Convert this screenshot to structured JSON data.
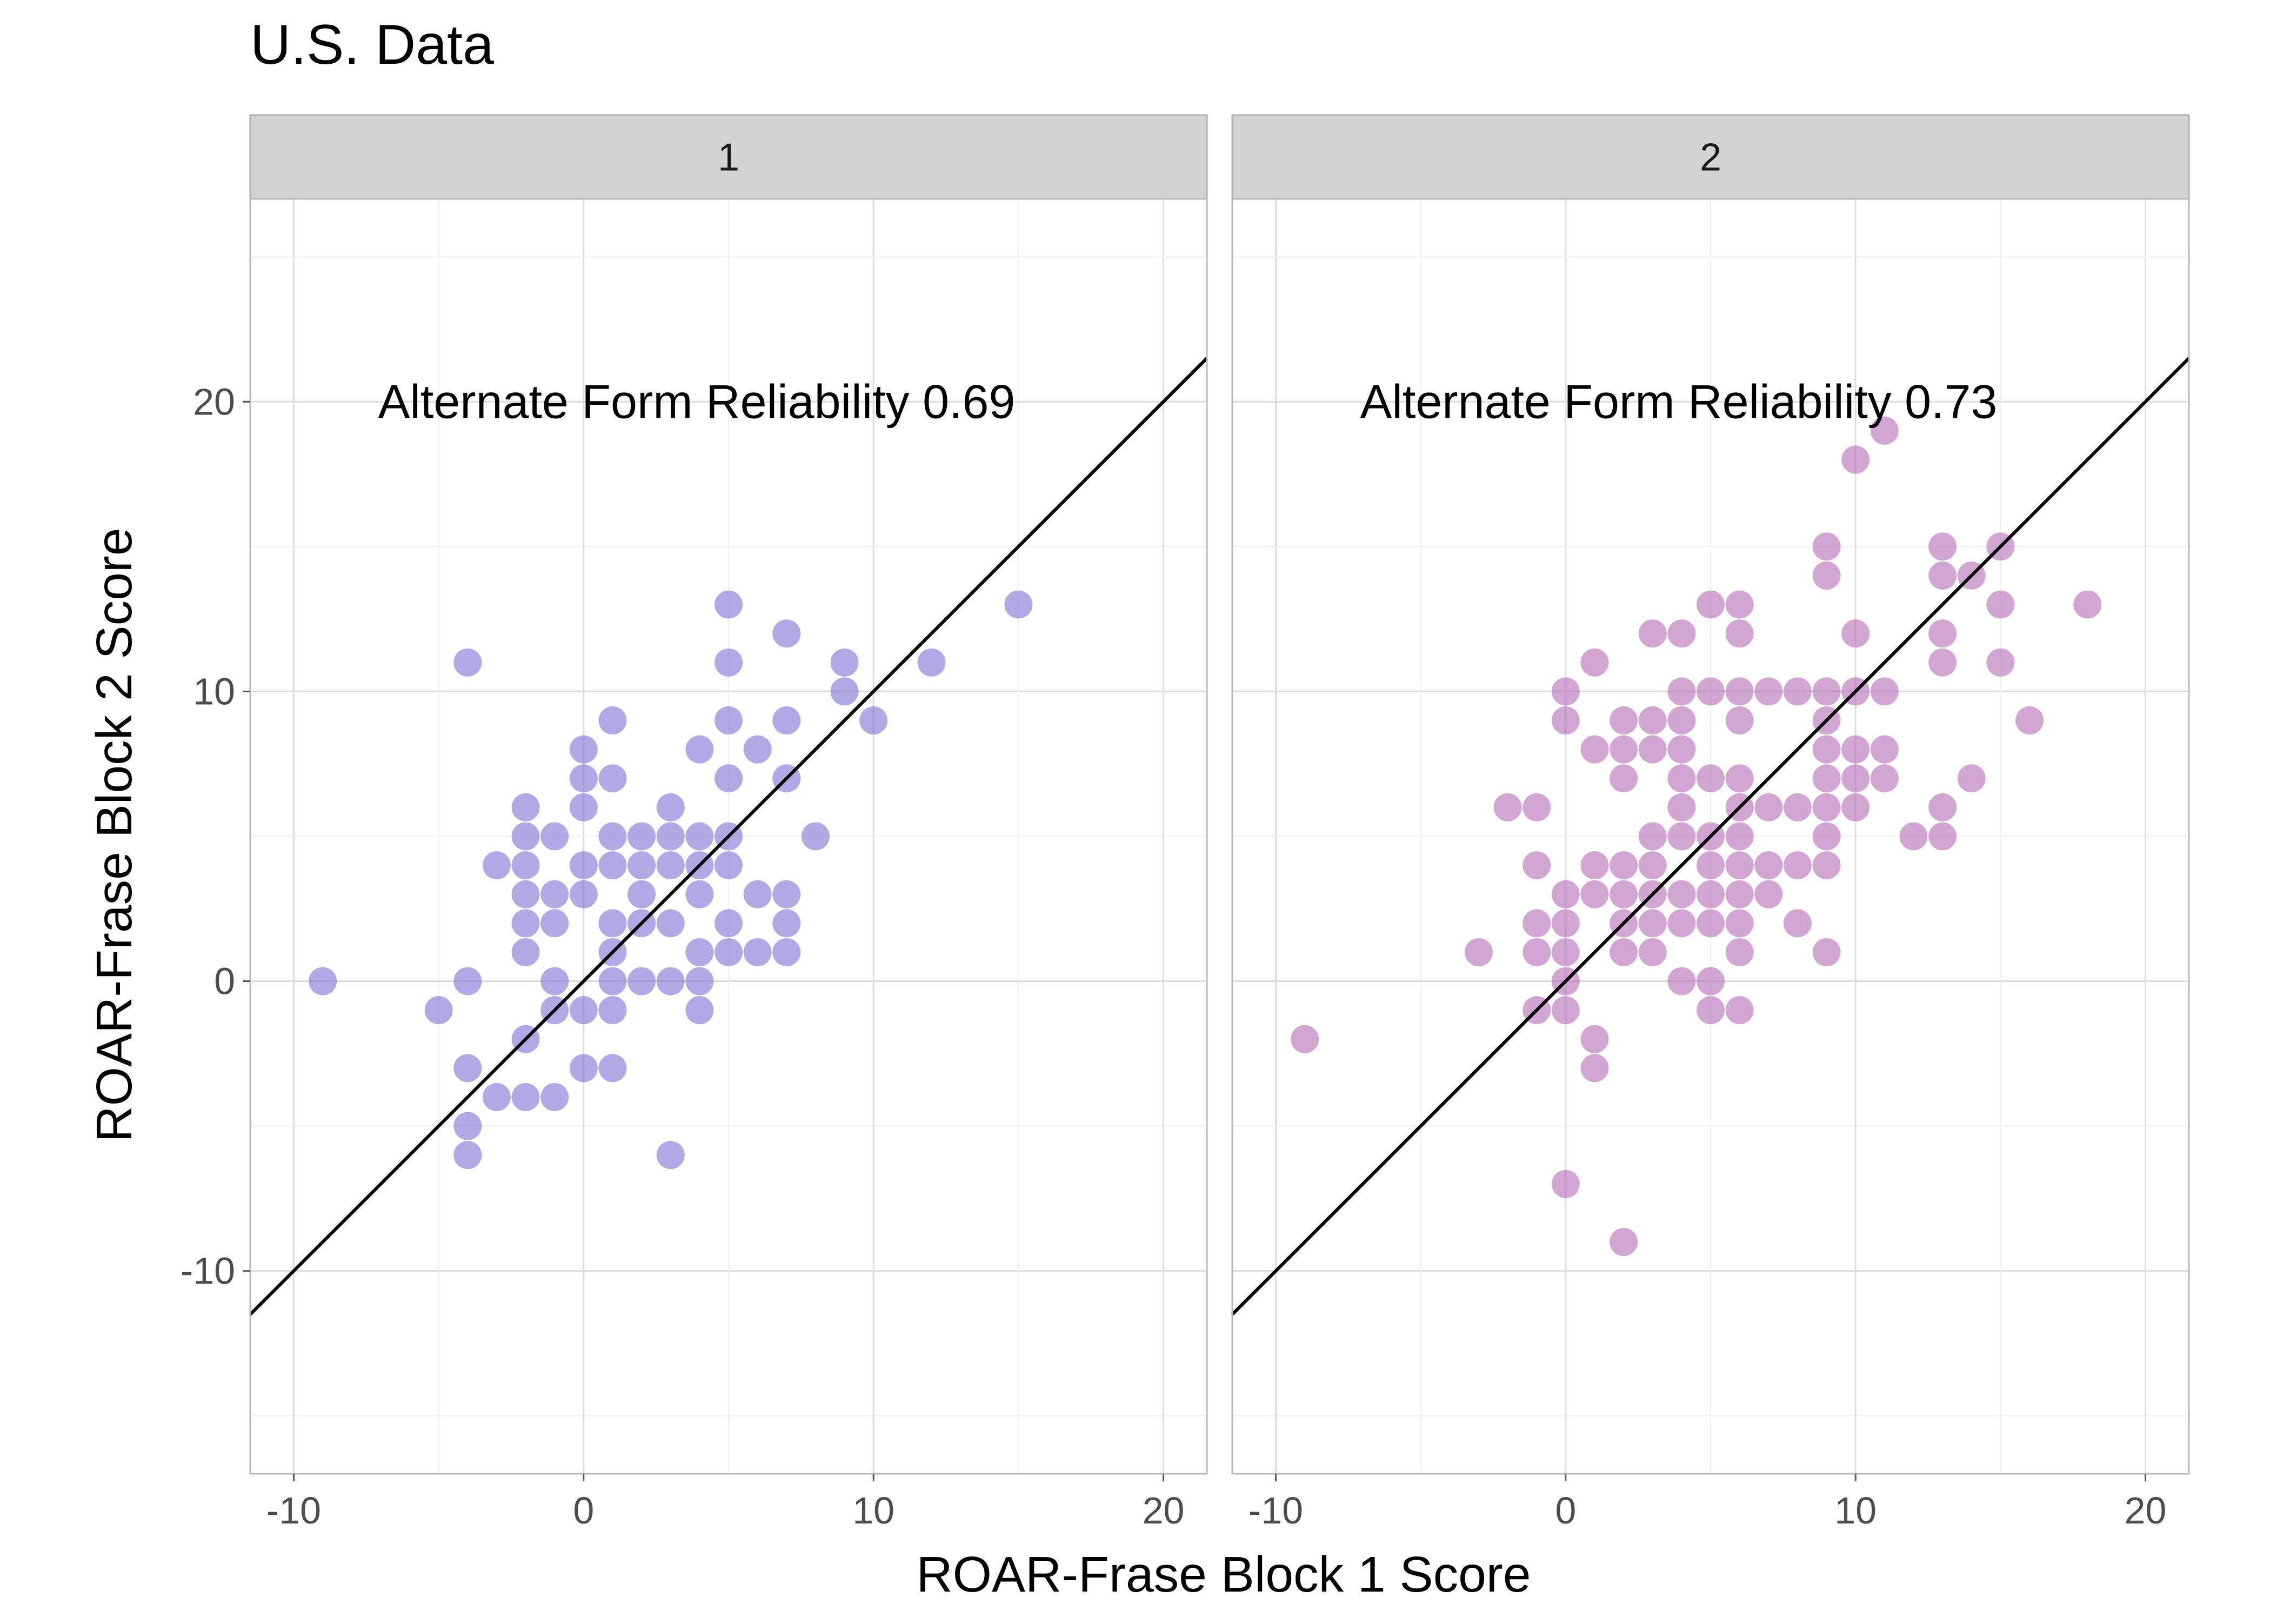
{
  "chart_data": {
    "type": "scatter",
    "title": "U.S. Data",
    "xlabel": "ROAR-Frase Block 1 Score",
    "ylabel": "ROAR-Frase Block 2 Score",
    "xlim": [
      -11.5,
      21.5
    ],
    "ylim": [
      -17,
      27
    ],
    "x_ticks": [
      -10,
      0,
      10,
      20
    ],
    "y_ticks": [
      -10,
      0,
      10,
      20
    ],
    "x_tick_labels": [
      "-10",
      "0",
      "10",
      "20"
    ],
    "y_tick_labels": [
      "-10",
      "0",
      "10",
      "20"
    ],
    "grid": true,
    "legend": "none",
    "reference_line": {
      "slope": 1,
      "intercept": 0
    },
    "panels": [
      {
        "strip_label": "1",
        "annotation": "Alternate Form Reliability 0.69",
        "color": "#7b6fd6",
        "points": [
          [
            -9,
            0
          ],
          [
            -5,
            -1
          ],
          [
            -4,
            11
          ],
          [
            -4,
            0
          ],
          [
            -4,
            -3
          ],
          [
            -4,
            -5
          ],
          [
            -4,
            -6
          ],
          [
            -3,
            4
          ],
          [
            -3,
            -4
          ],
          [
            -2,
            6
          ],
          [
            -2,
            5
          ],
          [
            -2,
            4
          ],
          [
            -2,
            3
          ],
          [
            -2,
            2
          ],
          [
            -2,
            1
          ],
          [
            -2,
            -2
          ],
          [
            -2,
            -4
          ],
          [
            -1,
            5
          ],
          [
            -1,
            3
          ],
          [
            -1,
            2
          ],
          [
            -1,
            0
          ],
          [
            -1,
            -1
          ],
          [
            -1,
            -4
          ],
          [
            0,
            8
          ],
          [
            0,
            7
          ],
          [
            0,
            6
          ],
          [
            0,
            4
          ],
          [
            0,
            3
          ],
          [
            0,
            -1
          ],
          [
            0,
            -3
          ],
          [
            1,
            9
          ],
          [
            1,
            7
          ],
          [
            1,
            5
          ],
          [
            1,
            4
          ],
          [
            1,
            2
          ],
          [
            1,
            1
          ],
          [
            1,
            0
          ],
          [
            1,
            -1
          ],
          [
            1,
            -3
          ],
          [
            2,
            5
          ],
          [
            2,
            4
          ],
          [
            2,
            3
          ],
          [
            2,
            2
          ],
          [
            2,
            0
          ],
          [
            3,
            6
          ],
          [
            3,
            5
          ],
          [
            3,
            4
          ],
          [
            3,
            2
          ],
          [
            3,
            0
          ],
          [
            3,
            -6
          ],
          [
            4,
            8
          ],
          [
            4,
            5
          ],
          [
            4,
            4
          ],
          [
            4,
            3
          ],
          [
            4,
            1
          ],
          [
            4,
            0
          ],
          [
            4,
            -1
          ],
          [
            5,
            13
          ],
          [
            5,
            11
          ],
          [
            5,
            9
          ],
          [
            5,
            7
          ],
          [
            5,
            5
          ],
          [
            5,
            4
          ],
          [
            5,
            2
          ],
          [
            5,
            1
          ],
          [
            6,
            8
          ],
          [
            6,
            3
          ],
          [
            6,
            1
          ],
          [
            7,
            12
          ],
          [
            7,
            9
          ],
          [
            7,
            7
          ],
          [
            7,
            3
          ],
          [
            7,
            2
          ],
          [
            7,
            1
          ],
          [
            8,
            5
          ],
          [
            9,
            11
          ],
          [
            9,
            10
          ],
          [
            10,
            9
          ],
          [
            12,
            11
          ],
          [
            15,
            13
          ]
        ]
      },
      {
        "strip_label": "2",
        "annotation": "Alternate Form Reliability 0.73",
        "color": "#b46ab5",
        "points": [
          [
            -9,
            -2
          ],
          [
            -3,
            1
          ],
          [
            -2,
            6
          ],
          [
            -1,
            6
          ],
          [
            -1,
            4
          ],
          [
            -1,
            2
          ],
          [
            -1,
            1
          ],
          [
            -1,
            -1
          ],
          [
            0,
            10
          ],
          [
            0,
            9
          ],
          [
            0,
            3
          ],
          [
            0,
            2
          ],
          [
            0,
            1
          ],
          [
            0,
            0
          ],
          [
            0,
            -1
          ],
          [
            0,
            -7
          ],
          [
            1,
            11
          ],
          [
            1,
            8
          ],
          [
            1,
            4
          ],
          [
            1,
            3
          ],
          [
            1,
            -2
          ],
          [
            1,
            -3
          ],
          [
            2,
            9
          ],
          [
            2,
            8
          ],
          [
            2,
            7
          ],
          [
            2,
            4
          ],
          [
            2,
            3
          ],
          [
            2,
            2
          ],
          [
            2,
            1
          ],
          [
            2,
            -9
          ],
          [
            3,
            12
          ],
          [
            3,
            9
          ],
          [
            3,
            8
          ],
          [
            3,
            5
          ],
          [
            3,
            4
          ],
          [
            3,
            3
          ],
          [
            3,
            2
          ],
          [
            3,
            1
          ],
          [
            4,
            12
          ],
          [
            4,
            10
          ],
          [
            4,
            9
          ],
          [
            4,
            8
          ],
          [
            4,
            7
          ],
          [
            4,
            6
          ],
          [
            4,
            5
          ],
          [
            4,
            3
          ],
          [
            4,
            2
          ],
          [
            4,
            0
          ],
          [
            5,
            13
          ],
          [
            5,
            10
          ],
          [
            5,
            7
          ],
          [
            5,
            5
          ],
          [
            5,
            4
          ],
          [
            5,
            3
          ],
          [
            5,
            2
          ],
          [
            5,
            0
          ],
          [
            5,
            -1
          ],
          [
            6,
            13
          ],
          [
            6,
            12
          ],
          [
            6,
            10
          ],
          [
            6,
            9
          ],
          [
            6,
            7
          ],
          [
            6,
            6
          ],
          [
            6,
            5
          ],
          [
            6,
            4
          ],
          [
            6,
            3
          ],
          [
            6,
            2
          ],
          [
            6,
            1
          ],
          [
            6,
            -1
          ],
          [
            7,
            10
          ],
          [
            7,
            6
          ],
          [
            7,
            4
          ],
          [
            7,
            3
          ],
          [
            8,
            10
          ],
          [
            8,
            6
          ],
          [
            8,
            4
          ],
          [
            8,
            2
          ],
          [
            9,
            15
          ],
          [
            9,
            14
          ],
          [
            9,
            10
          ],
          [
            9,
            9
          ],
          [
            9,
            8
          ],
          [
            9,
            7
          ],
          [
            9,
            6
          ],
          [
            9,
            5
          ],
          [
            9,
            4
          ],
          [
            9,
            1
          ],
          [
            10,
            18
          ],
          [
            10,
            12
          ],
          [
            10,
            10
          ],
          [
            10,
            8
          ],
          [
            10,
            7
          ],
          [
            10,
            6
          ],
          [
            11,
            19
          ],
          [
            11,
            10
          ],
          [
            11,
            8
          ],
          [
            11,
            7
          ],
          [
            12,
            5
          ],
          [
            13,
            15
          ],
          [
            13,
            14
          ],
          [
            13,
            12
          ],
          [
            13,
            11
          ],
          [
            13,
            6
          ],
          [
            13,
            5
          ],
          [
            14,
            14
          ],
          [
            14,
            7
          ],
          [
            15,
            15
          ],
          [
            15,
            13
          ],
          [
            15,
            11
          ],
          [
            16,
            9
          ],
          [
            18,
            13
          ]
        ]
      }
    ]
  }
}
